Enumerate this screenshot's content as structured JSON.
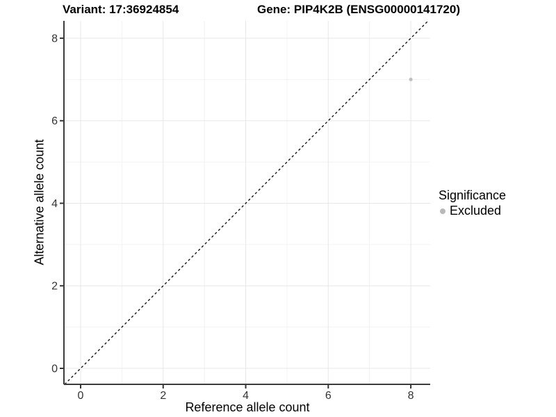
{
  "chart_data": {
    "type": "scatter",
    "title_left": "Variant: 17:36924854",
    "title_right": "Gene: PIP4K2B (ENSG00000141720)",
    "xlabel": "Reference allele count",
    "ylabel": "Alternative allele count",
    "xlim": [
      -0.404,
      8.47
    ],
    "ylim": [
      -0.387,
      8.42
    ],
    "xticks": [
      0,
      2,
      4,
      6,
      8
    ],
    "yticks": [
      0,
      2,
      4,
      6,
      8
    ],
    "xticks_minor": [
      1,
      3,
      5,
      7
    ],
    "yticks_minor": [
      1,
      3,
      5,
      7
    ],
    "grid": "major+minor",
    "legend_position": "right",
    "legend": {
      "title": "Significance",
      "items": [
        {
          "label": "Excluded",
          "color": "#b9b9b9"
        }
      ]
    },
    "series": [
      {
        "name": "Excluded",
        "color": "#bfbfbf",
        "points": [
          {
            "x": 8,
            "y": 7
          }
        ]
      }
    ],
    "reference_line": {
      "type": "identity",
      "slope": 1,
      "intercept": 0,
      "style": "dashed",
      "color": "#000000"
    },
    "colors": {
      "grid_major": "#e7e7e7",
      "grid_minor": "#f2f2f2",
      "axis": "#3c3c3c",
      "tick": "#333333"
    }
  }
}
